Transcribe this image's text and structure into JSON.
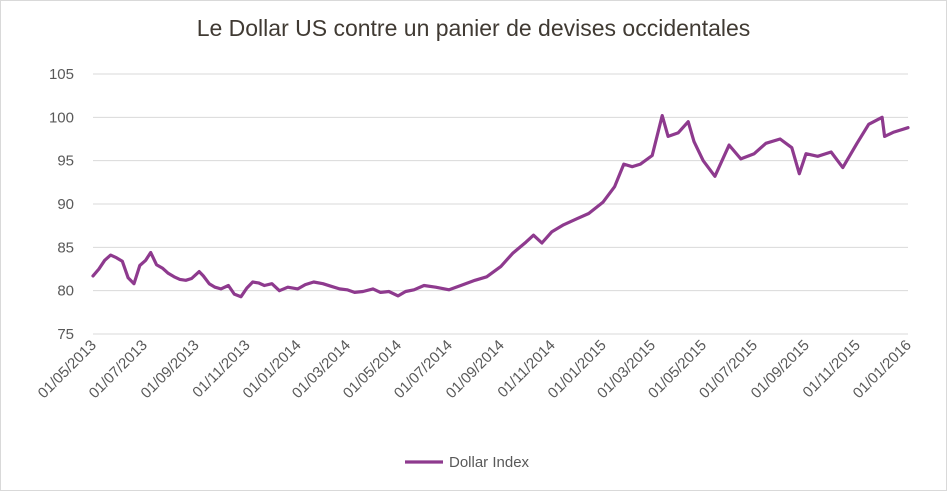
{
  "chart_data": {
    "type": "line",
    "title": "Le Dollar US contre un panier de devises occidentales",
    "xlabel": "",
    "ylabel": "",
    "ylim": [
      75,
      105
    ],
    "yticks": [
      75,
      80,
      85,
      90,
      95,
      100,
      105
    ],
    "xlim": [
      "2013-05-01",
      "2016-01-01"
    ],
    "xticks": [
      "01/05/2013",
      "01/07/2013",
      "01/09/2013",
      "01/11/2013",
      "01/01/2014",
      "01/03/2014",
      "01/05/2014",
      "01/07/2014",
      "01/09/2014",
      "01/11/2014",
      "01/01/2015",
      "01/03/2015",
      "01/05/2015",
      "01/07/2015",
      "01/09/2015",
      "01/11/2015",
      "01/01/2016"
    ],
    "grid": "horizontal",
    "legend_position": "bottom",
    "color": "#8e3a8e",
    "series": [
      {
        "name": "Dollar Index",
        "points": [
          [
            "2013-05-01",
            81.7
          ],
          [
            "2013-05-08",
            82.5
          ],
          [
            "2013-05-15",
            83.5
          ],
          [
            "2013-05-22",
            84.1
          ],
          [
            "2013-05-29",
            83.8
          ],
          [
            "2013-06-05",
            83.4
          ],
          [
            "2013-06-12",
            81.5
          ],
          [
            "2013-06-19",
            80.8
          ],
          [
            "2013-06-26",
            82.9
          ],
          [
            "2013-07-03",
            83.5
          ],
          [
            "2013-07-09",
            84.4
          ],
          [
            "2013-07-16",
            83.0
          ],
          [
            "2013-07-23",
            82.6
          ],
          [
            "2013-07-30",
            82.0
          ],
          [
            "2013-08-06",
            81.6
          ],
          [
            "2013-08-13",
            81.3
          ],
          [
            "2013-08-20",
            81.2
          ],
          [
            "2013-08-27",
            81.4
          ],
          [
            "2013-09-05",
            82.2
          ],
          [
            "2013-09-10",
            81.7
          ],
          [
            "2013-09-17",
            80.8
          ],
          [
            "2013-09-24",
            80.4
          ],
          [
            "2013-10-01",
            80.2
          ],
          [
            "2013-10-10",
            80.6
          ],
          [
            "2013-10-17",
            79.6
          ],
          [
            "2013-10-25",
            79.3
          ],
          [
            "2013-11-01",
            80.3
          ],
          [
            "2013-11-08",
            81.0
          ],
          [
            "2013-11-15",
            80.9
          ],
          [
            "2013-11-22",
            80.6
          ],
          [
            "2013-12-01",
            80.8
          ],
          [
            "2013-12-10",
            80.0
          ],
          [
            "2013-12-20",
            80.4
          ],
          [
            "2014-01-01",
            80.2
          ],
          [
            "2014-01-10",
            80.7
          ],
          [
            "2014-01-20",
            81.0
          ],
          [
            "2014-01-31",
            80.8
          ],
          [
            "2014-02-10",
            80.5
          ],
          [
            "2014-02-20",
            80.2
          ],
          [
            "2014-03-01",
            80.1
          ],
          [
            "2014-03-10",
            79.8
          ],
          [
            "2014-03-20",
            79.9
          ],
          [
            "2014-04-01",
            80.2
          ],
          [
            "2014-04-10",
            79.8
          ],
          [
            "2014-04-20",
            79.9
          ],
          [
            "2014-05-01",
            79.4
          ],
          [
            "2014-05-10",
            79.9
          ],
          [
            "2014-05-20",
            80.1
          ],
          [
            "2014-06-01",
            80.6
          ],
          [
            "2014-06-15",
            80.4
          ],
          [
            "2014-07-01",
            80.1
          ],
          [
            "2014-07-15",
            80.6
          ],
          [
            "2014-08-01",
            81.2
          ],
          [
            "2014-08-15",
            81.6
          ],
          [
            "2014-09-01",
            82.8
          ],
          [
            "2014-09-15",
            84.3
          ],
          [
            "2014-10-01",
            85.6
          ],
          [
            "2014-10-10",
            86.4
          ],
          [
            "2014-10-20",
            85.5
          ],
          [
            "2014-11-01",
            86.8
          ],
          [
            "2014-11-15",
            87.6
          ],
          [
            "2014-12-01",
            88.3
          ],
          [
            "2014-12-15",
            88.9
          ],
          [
            "2015-01-01",
            90.2
          ],
          [
            "2015-01-15",
            92.0
          ],
          [
            "2015-01-26",
            94.6
          ],
          [
            "2015-02-05",
            94.3
          ],
          [
            "2015-02-15",
            94.6
          ],
          [
            "2015-03-01",
            95.6
          ],
          [
            "2015-03-13",
            100.2
          ],
          [
            "2015-03-20",
            97.8
          ],
          [
            "2015-04-01",
            98.2
          ],
          [
            "2015-04-13",
            99.5
          ],
          [
            "2015-04-20",
            97.2
          ],
          [
            "2015-05-01",
            95.0
          ],
          [
            "2015-05-15",
            93.2
          ],
          [
            "2015-06-01",
            96.8
          ],
          [
            "2015-06-15",
            95.2
          ],
          [
            "2015-07-01",
            95.8
          ],
          [
            "2015-07-15",
            97.0
          ],
          [
            "2015-08-01",
            97.5
          ],
          [
            "2015-08-15",
            96.5
          ],
          [
            "2015-08-24",
            93.5
          ],
          [
            "2015-09-01",
            95.8
          ],
          [
            "2015-09-15",
            95.5
          ],
          [
            "2015-10-01",
            96.0
          ],
          [
            "2015-10-15",
            94.2
          ],
          [
            "2015-11-01",
            97.0
          ],
          [
            "2015-11-15",
            99.2
          ],
          [
            "2015-12-01",
            100.0
          ],
          [
            "2015-12-04",
            97.8
          ],
          [
            "2015-12-15",
            98.3
          ],
          [
            "2016-01-01",
            98.8
          ]
        ]
      }
    ]
  }
}
